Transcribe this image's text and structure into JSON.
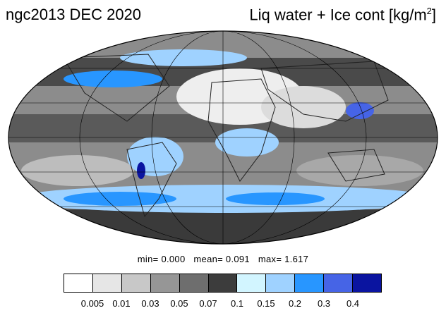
{
  "title_left": "ngc2013 DEC 2020",
  "title_right": {
    "text": "Liq water + Ice cont [kg/m",
    "sup": "2",
    "close": "]"
  },
  "stats": {
    "min": "min=  0.000",
    "mean": "mean=  0.091",
    "max": "max=  1.617"
  },
  "colorbar": {
    "colors": [
      "#ffffff",
      "#e6e6e6",
      "#c8c8c8",
      "#969696",
      "#6e6e6e",
      "#3c3c3c",
      "#d2f5ff",
      "#9fd2ff",
      "#2896ff",
      "#4664e6",
      "#0a14a0"
    ],
    "labels": [
      "0.005",
      "0.01",
      "0.03",
      "0.05",
      "0.07",
      "0.1",
      "0.15",
      "0.2",
      "0.3",
      "0.4"
    ]
  },
  "map": {
    "projection": "mollweide",
    "graticule": true,
    "coastlines": true
  }
}
